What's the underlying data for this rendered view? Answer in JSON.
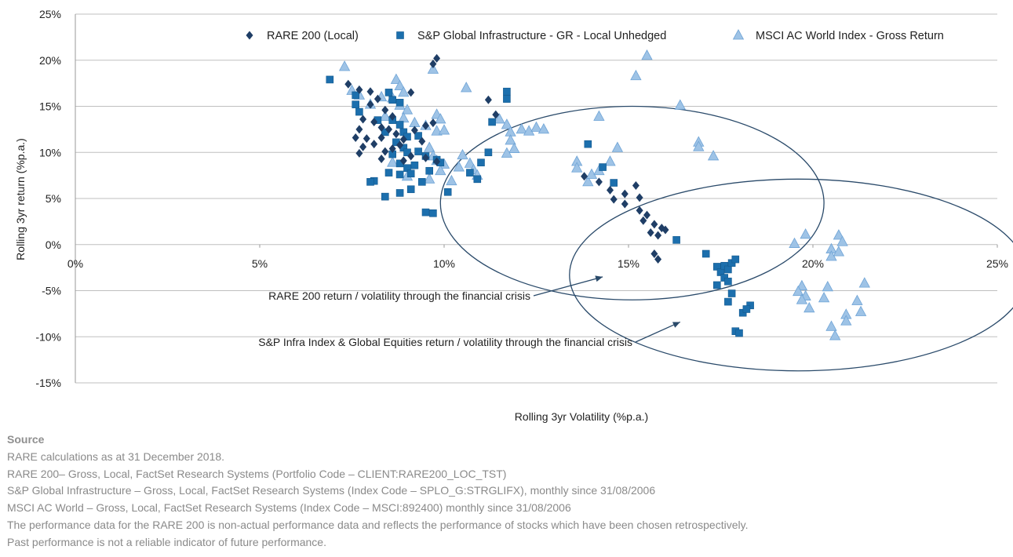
{
  "chart_data": {
    "type": "scatter",
    "title": "",
    "xlabel": "Rolling 3yr Volatility (%p.a.)",
    "ylabel": "Rolling 3yr return (%p.a.)",
    "xlim": [
      0,
      25
    ],
    "ylim": [
      -15,
      25
    ],
    "x_ticks": [
      "0%",
      "5%",
      "10%",
      "15%",
      "20%",
      "25%"
    ],
    "y_ticks": [
      "25%",
      "20%",
      "15%",
      "10%",
      "5%",
      "0%",
      "-5%",
      "-10%",
      "-15%"
    ],
    "grid": "horizontal",
    "legend_position": "top",
    "colors": {
      "rare200": "#1f3e66",
      "sp_infra": "#1c6fad",
      "msci": "#9ec3e6",
      "msci_edge": "#6fa4d6",
      "ellipse": "#2a4a6a",
      "gridline": "#bfbfbf"
    },
    "series": [
      {
        "name": "RARE 200 (Local)",
        "marker": "diamond",
        "points": [
          [
            7.4,
            17.4
          ],
          [
            7.7,
            16.8
          ],
          [
            8.0,
            16.6
          ],
          [
            8.2,
            15.8
          ],
          [
            8.0,
            15.2
          ],
          [
            8.4,
            14.6
          ],
          [
            8.6,
            13.9
          ],
          [
            7.8,
            13.6
          ],
          [
            8.1,
            13.3
          ],
          [
            8.3,
            12.7
          ],
          [
            7.7,
            12.5
          ],
          [
            8.5,
            12.5
          ],
          [
            8.7,
            12.0
          ],
          [
            7.6,
            11.6
          ],
          [
            7.9,
            11.5
          ],
          [
            8.3,
            11.6
          ],
          [
            8.9,
            11.4
          ],
          [
            9.2,
            12.4
          ],
          [
            9.5,
            12.9
          ],
          [
            9.7,
            13.2
          ],
          [
            9.4,
            11.2
          ],
          [
            7.8,
            10.6
          ],
          [
            8.1,
            10.9
          ],
          [
            8.4,
            10.1
          ],
          [
            8.6,
            10.4
          ],
          [
            8.8,
            10.8
          ],
          [
            7.7,
            9.9
          ],
          [
            8.3,
            9.3
          ],
          [
            8.9,
            9.1
          ],
          [
            9.1,
            9.6
          ],
          [
            9.5,
            9.4
          ],
          [
            9.8,
            9.0
          ],
          [
            9.1,
            16.5
          ],
          [
            9.8,
            20.2
          ],
          [
            9.7,
            19.6
          ],
          [
            11.2,
            15.7
          ],
          [
            11.4,
            14.1
          ],
          [
            13.8,
            7.4
          ],
          [
            14.2,
            6.8
          ],
          [
            14.5,
            5.9
          ],
          [
            14.6,
            4.9
          ],
          [
            14.9,
            4.4
          ],
          [
            14.9,
            5.5
          ],
          [
            15.2,
            6.4
          ],
          [
            15.3,
            5.1
          ],
          [
            15.3,
            3.7
          ],
          [
            15.5,
            3.2
          ],
          [
            15.4,
            2.6
          ],
          [
            15.7,
            2.2
          ],
          [
            15.6,
            1.3
          ],
          [
            15.9,
            1.8
          ],
          [
            16.0,
            1.6
          ],
          [
            15.8,
            1.0
          ],
          [
            15.7,
            -1.0
          ],
          [
            15.8,
            -1.6
          ]
        ]
      },
      {
        "name": "S&P Global Infrastructure  - GR - Local Unhedged",
        "marker": "square",
        "points": [
          [
            6.9,
            17.9
          ],
          [
            7.6,
            16.2
          ],
          [
            7.6,
            15.2
          ],
          [
            7.7,
            14.4
          ],
          [
            8.5,
            16.5
          ],
          [
            8.6,
            15.7
          ],
          [
            8.8,
            15.4
          ],
          [
            8.2,
            13.5
          ],
          [
            8.6,
            13.5
          ],
          [
            8.8,
            13.0
          ],
          [
            8.9,
            12.2
          ],
          [
            9.0,
            11.7
          ],
          [
            9.3,
            11.8
          ],
          [
            8.4,
            12.2
          ],
          [
            8.7,
            11.1
          ],
          [
            8.9,
            10.5
          ],
          [
            9.0,
            10.0
          ],
          [
            9.3,
            10.1
          ],
          [
            9.5,
            9.6
          ],
          [
            9.8,
            9.2
          ],
          [
            9.9,
            8.9
          ],
          [
            8.6,
            9.8
          ],
          [
            8.8,
            8.8
          ],
          [
            9.0,
            8.3
          ],
          [
            9.2,
            8.6
          ],
          [
            9.6,
            8.0
          ],
          [
            9.1,
            7.7
          ],
          [
            8.8,
            7.6
          ],
          [
            8.5,
            7.8
          ],
          [
            8.1,
            6.9
          ],
          [
            8.0,
            6.8
          ],
          [
            9.4,
            6.8
          ],
          [
            9.1,
            6.0
          ],
          [
            8.8,
            5.6
          ],
          [
            8.4,
            5.2
          ],
          [
            9.5,
            3.5
          ],
          [
            9.7,
            3.4
          ],
          [
            10.1,
            5.7
          ],
          [
            10.7,
            7.8
          ],
          [
            10.9,
            7.1
          ],
          [
            11.0,
            8.9
          ],
          [
            11.2,
            10.0
          ],
          [
            11.3,
            13.3
          ],
          [
            11.7,
            16.6
          ],
          [
            11.7,
            15.8
          ],
          [
            13.9,
            10.9
          ],
          [
            14.3,
            8.4
          ],
          [
            14.6,
            6.7
          ],
          [
            16.3,
            0.5
          ],
          [
            17.1,
            -1.0
          ],
          [
            17.4,
            -2.4
          ],
          [
            17.5,
            -3.0
          ],
          [
            17.6,
            -2.3
          ],
          [
            17.7,
            -2.7
          ],
          [
            17.6,
            -3.6
          ],
          [
            17.8,
            -2.0
          ],
          [
            17.9,
            -1.6
          ],
          [
            17.7,
            -4.0
          ],
          [
            17.4,
            -4.4
          ],
          [
            17.8,
            -5.3
          ],
          [
            17.7,
            -6.2
          ],
          [
            18.1,
            -7.4
          ],
          [
            18.3,
            -6.6
          ],
          [
            18.2,
            -7.0
          ],
          [
            17.9,
            -9.4
          ],
          [
            18.0,
            -9.6
          ]
        ]
      },
      {
        "name": "MSCI AC World Index - Gross Return",
        "marker": "triangle",
        "points": [
          [
            7.3,
            19.3
          ],
          [
            7.5,
            16.7
          ],
          [
            7.7,
            16.2
          ],
          [
            8.0,
            15.2
          ],
          [
            8.3,
            16.0
          ],
          [
            8.7,
            17.9
          ],
          [
            8.8,
            17.2
          ],
          [
            8.9,
            16.5
          ],
          [
            8.6,
            15.9
          ],
          [
            8.8,
            15.1
          ],
          [
            9.0,
            14.6
          ],
          [
            8.9,
            13.7
          ],
          [
            8.4,
            13.9
          ],
          [
            9.2,
            13.2
          ],
          [
            9.5,
            12.9
          ],
          [
            9.7,
            19.0
          ],
          [
            9.8,
            14.1
          ],
          [
            9.9,
            13.6
          ],
          [
            9.8,
            12.3
          ],
          [
            10.0,
            12.4
          ],
          [
            9.6,
            10.5
          ],
          [
            9.7,
            9.6
          ],
          [
            9.8,
            9.1
          ],
          [
            10.0,
            8.7
          ],
          [
            9.9,
            8.0
          ],
          [
            9.6,
            7.1
          ],
          [
            9.0,
            7.4
          ],
          [
            8.6,
            8.9
          ],
          [
            10.2,
            6.9
          ],
          [
            10.4,
            8.4
          ],
          [
            10.5,
            9.7
          ],
          [
            10.7,
            8.8
          ],
          [
            10.8,
            8.1
          ],
          [
            10.9,
            7.5
          ],
          [
            10.6,
            17.0
          ],
          [
            11.5,
            13.6
          ],
          [
            11.7,
            13.0
          ],
          [
            11.8,
            12.2
          ],
          [
            11.8,
            11.3
          ],
          [
            11.9,
            10.4
          ],
          [
            11.7,
            9.9
          ],
          [
            12.1,
            12.5
          ],
          [
            12.3,
            12.3
          ],
          [
            12.5,
            12.7
          ],
          [
            12.7,
            12.5
          ],
          [
            13.6,
            9.0
          ],
          [
            13.6,
            8.3
          ],
          [
            13.9,
            6.8
          ],
          [
            14.0,
            7.6
          ],
          [
            14.2,
            8.0
          ],
          [
            14.2,
            13.9
          ],
          [
            14.5,
            9.0
          ],
          [
            14.7,
            10.5
          ],
          [
            15.2,
            18.3
          ],
          [
            15.5,
            20.5
          ],
          [
            16.4,
            15.1
          ],
          [
            16.9,
            11.1
          ],
          [
            16.9,
            10.6
          ],
          [
            17.3,
            9.6
          ],
          [
            19.5,
            0.1
          ],
          [
            19.8,
            1.1
          ],
          [
            20.5,
            -0.5
          ],
          [
            20.5,
            -1.3
          ],
          [
            20.7,
            1.0
          ],
          [
            20.8,
            0.3
          ],
          [
            20.7,
            -0.8
          ],
          [
            19.7,
            -4.5
          ],
          [
            19.6,
            -5.1
          ],
          [
            19.8,
            -5.6
          ],
          [
            19.7,
            -6.0
          ],
          [
            19.9,
            -6.9
          ],
          [
            20.3,
            -5.8
          ],
          [
            20.4,
            -4.6
          ],
          [
            20.5,
            -8.9
          ],
          [
            20.6,
            -9.9
          ],
          [
            20.9,
            -7.6
          ],
          [
            20.9,
            -8.3
          ],
          [
            21.2,
            -6.1
          ],
          [
            21.3,
            -7.3
          ],
          [
            21.4,
            -4.2
          ]
        ]
      }
    ],
    "annotations": [
      {
        "text": "RARE 200  return / volatility through the financial crisis",
        "ellipse": {
          "cx": 15.1,
          "cy": 4.5,
          "rx": 5.2,
          "ry": 10.5
        },
        "arrow_to": [
          14.3,
          -3.5
        ]
      },
      {
        "text": "S&P Infra Index & Global Equities return / volatility through the financial crisis",
        "ellipse": {
          "cx": 19.6,
          "cy": -3.3,
          "rx": 6.2,
          "ry": 10.4
        },
        "arrow_to": [
          16.4,
          -8.4
        ]
      }
    ]
  },
  "source": {
    "heading": "Source",
    "lines": [
      "RARE calculations as at 31 December 2018.",
      "RARE 200– Gross, Local, FactSet Research Systems (Portfolio Code – CLIENT:RARE200_LOC_TST)",
      "S&P Global Infrastructure – Gross, Local, FactSet Research Systems (Index Code – SPLO_G:STRGLIFX), monthly since 31/08/2006",
      "MSCI AC World – Gross, Local, FactSet Research Systems (Index Code – MSCI:892400) monthly since 31/08/2006",
      "The performance data for the RARE 200 is non-actual performance data and reflects the performance of stocks which have been chosen retrospectively.",
      "Past performance is not a reliable indicator of future performance."
    ]
  }
}
